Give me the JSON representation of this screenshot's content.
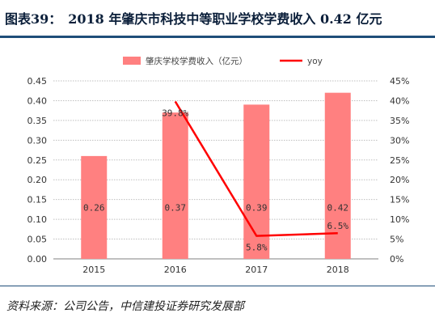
{
  "header": {
    "title": "图表39：　2018 年肇庆市科技中等职业学校学费收入 0.42 亿元"
  },
  "source": "资料来源：公司公告，中信建投证券研究发展部",
  "colors": {
    "bar": "#ff8080",
    "line": "#ff0000",
    "grid": "#bfbfbf",
    "accent": "#1f4e79"
  },
  "chart_data": {
    "type": "bar",
    "categories": [
      "2015",
      "2016",
      "2017",
      "2018"
    ],
    "series": [
      {
        "name": "肇庆学校学费收入（亿元）",
        "type": "bar",
        "axis": "left",
        "values": [
          0.26,
          0.37,
          0.39,
          0.42
        ],
        "labels": [
          "0.26",
          "0.37",
          "0.39",
          "0.42"
        ]
      },
      {
        "name": "yoy",
        "type": "line",
        "axis": "right",
        "values": [
          null,
          39.8,
          5.8,
          6.5
        ],
        "labels": [
          "",
          "39.8%",
          "5.8%",
          "6.5%"
        ]
      }
    ],
    "ylim": [
      0,
      0.45
    ],
    "y_ticks": [
      "0.00",
      "0.05",
      "0.10",
      "0.15",
      "0.20",
      "0.25",
      "0.30",
      "0.35",
      "0.40",
      "0.45"
    ],
    "y2lim": [
      0,
      45
    ],
    "y2_ticks": [
      "0%",
      "5%",
      "10%",
      "15%",
      "20%",
      "25%",
      "30%",
      "35%",
      "40%",
      "45%"
    ],
    "grid": true,
    "legend_position": "top"
  }
}
